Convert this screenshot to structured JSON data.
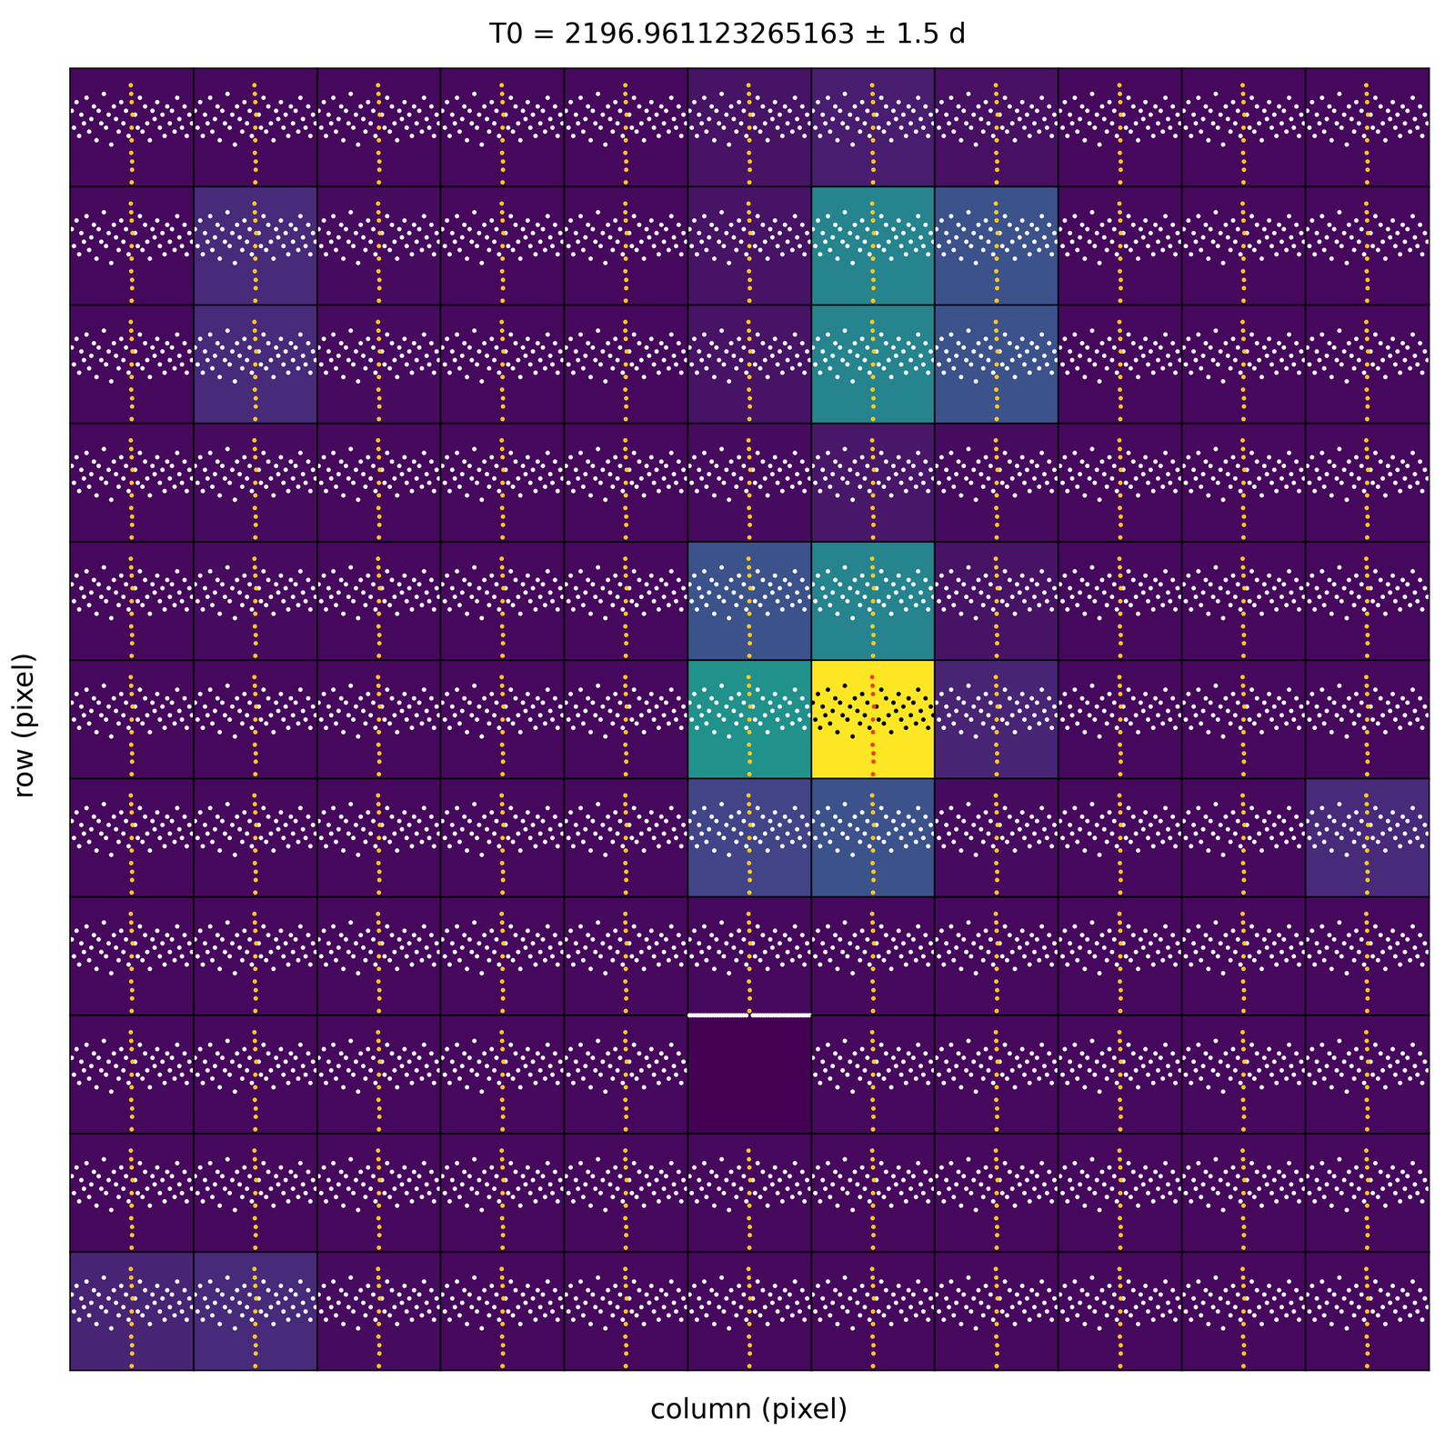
{
  "chart_data": {
    "type": "pixel_grid",
    "title": "T0 = 2196.961123265163 ± 1.5 d",
    "x_label": "column (pixel)",
    "y_label": "row (pixel)",
    "tick_labels": false,
    "xlim": [
      2195.461123265163,
      2198.461123265163
    ],
    "ylim": [
      0.984,
      1.012
    ],
    "cells": [
      [
        0.02,
        0.02,
        0.02,
        0.02,
        0.02,
        0.05,
        0.08,
        0.04,
        0.02,
        0.02,
        0.02
      ],
      [
        0.02,
        0.12,
        0.03,
        0.02,
        0.02,
        0.05,
        0.45,
        0.25,
        0.02,
        0.02,
        0.02
      ],
      [
        0.02,
        0.12,
        0.03,
        0.02,
        0.02,
        0.05,
        0.45,
        0.25,
        0.02,
        0.02,
        0.02
      ],
      [
        0.02,
        0.03,
        0.02,
        0.02,
        0.02,
        0.03,
        0.06,
        0.03,
        0.02,
        0.02,
        0.02
      ],
      [
        0.02,
        0.03,
        0.02,
        0.02,
        0.02,
        0.25,
        0.45,
        0.05,
        0.02,
        0.02,
        0.02
      ],
      [
        0.02,
        0.02,
        0.02,
        0.02,
        0.02,
        0.5,
        1.0,
        0.1,
        0.02,
        0.02,
        0.02
      ],
      [
        0.02,
        0.02,
        0.02,
        0.02,
        0.02,
        0.2,
        0.25,
        0.03,
        0.02,
        0.02,
        0.12
      ],
      [
        0.02,
        0.02,
        0.02,
        0.02,
        0.02,
        0.02,
        0.02,
        0.02,
        0.02,
        0.02,
        0.02
      ],
      [
        0.02,
        0.02,
        0.02,
        0.02,
        0.02,
        0.0,
        0.02,
        0.02,
        0.02,
        0.02,
        0.02
      ],
      [
        0.02,
        0.02,
        0.02,
        0.02,
        0.02,
        0.02,
        0.02,
        0.02,
        0.02,
        0.02,
        0.02
      ],
      [
        0.1,
        0.12,
        0.03,
        0.02,
        0.02,
        0.02,
        0.02,
        0.02,
        0.02,
        0.02,
        0.02
      ]
    ],
    "color_range": [
      0,
      1
    ],
    "empty_cells": [
      [
        8,
        5
      ]
    ],
    "out_of_transit": {
      "color": "#f8f8ff",
      "x": [
        2195.5,
        2195.56,
        2195.62,
        2195.68,
        2195.74,
        2195.8,
        2195.86,
        2195.92,
        2195.98,
        2196.04,
        2196.1,
        2196.16,
        2196.22,
        2196.28,
        2196.34,
        2196.4,
        2196.46,
        2196.52,
        2196.58,
        2196.64,
        2196.7,
        2196.76,
        2196.82,
        2196.88,
        2197.04,
        2197.1,
        2197.16,
        2197.22,
        2197.28,
        2197.34,
        2197.4,
        2197.46,
        2197.52,
        2197.58,
        2197.64,
        2197.7,
        2197.76,
        2197.82,
        2197.88,
        2197.94,
        2198.0,
        2198.06,
        2198.12,
        2198.18,
        2198.24,
        2198.3,
        2198.36,
        2198.42
      ],
      "y": [
        1.002,
        0.998,
        1.004,
        0.996,
        1.001,
        0.999,
        1.005,
        0.997,
        1.0,
        1.003,
        0.995,
        1.002,
        0.999,
        1.006,
        0.998,
        1.001,
        0.994,
        1.003,
        1.0,
        0.997,
        1.004,
        0.999,
        1.002,
        0.996,
        1.001,
        0.998,
        1.005,
        0.997,
        1.003,
        0.999,
        0.995,
        1.002,
        1.0,
        1.004,
        0.998,
        1.001,
        0.996,
        1.003,
        0.999,
        1.002,
        0.997,
        1.005,
        1.0,
        0.998,
        1.003,
        0.996,
        1.001,
        0.999
      ]
    },
    "in_transit": {
      "color": "#ffc81e",
      "x": [
        2196.94,
        2196.95,
        2196.96,
        2196.96,
        2196.97,
        2196.98,
        2196.96,
        2196.95,
        2196.97,
        2196.96
      ],
      "y": [
        1.008,
        0.992,
        0.998,
        1.004,
        0.988,
        1.001,
        0.995,
        1.006,
        0.99,
        0.985
      ]
    },
    "target_cell": {
      "row": 5,
      "col": 6,
      "colors": [
        "#000000",
        "#e8451a"
      ]
    }
  }
}
